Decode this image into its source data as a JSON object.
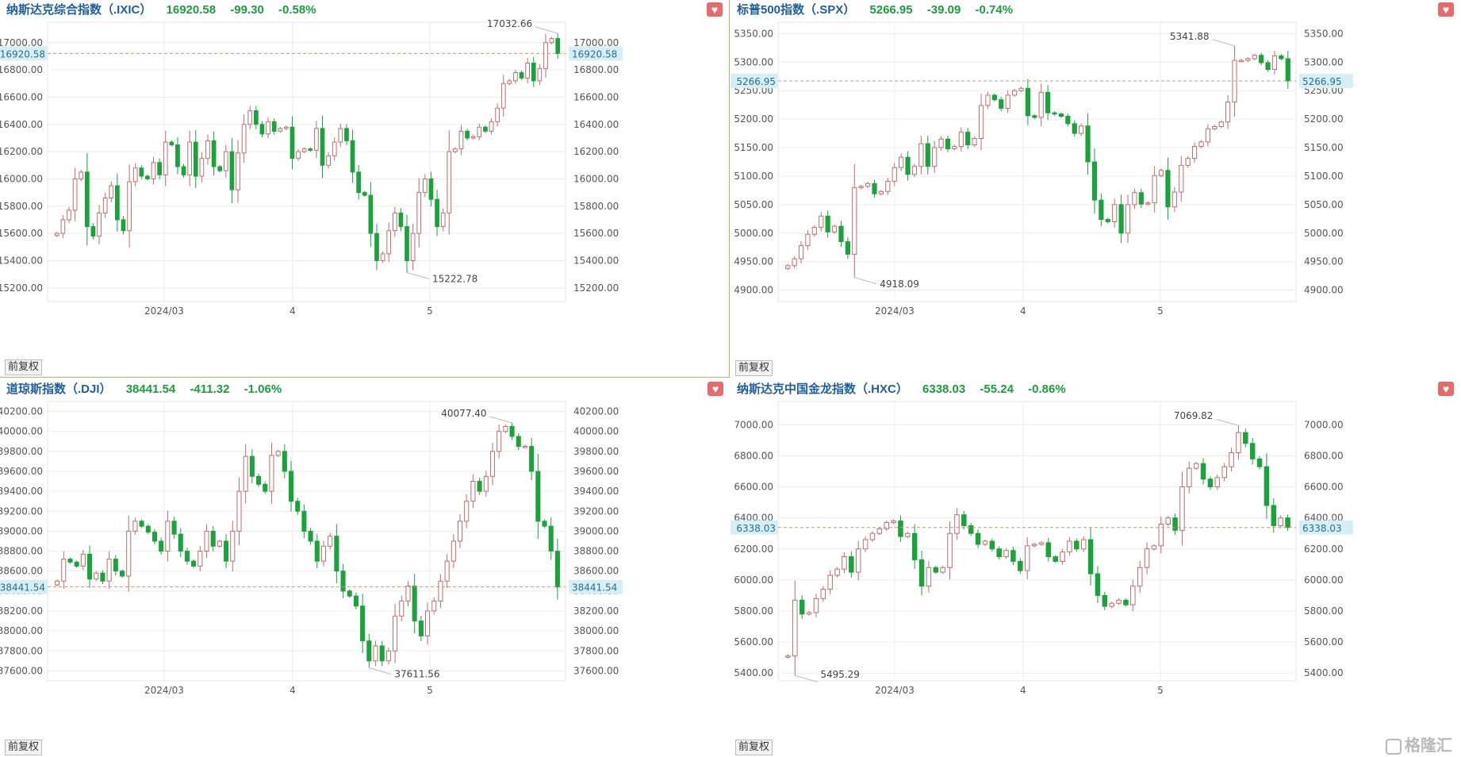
{
  "colors": {
    "up": "#c86a6a",
    "down": "#1aa33c",
    "dash": "#d4956a",
    "grid": "#ececec",
    "axis_text": "#555555",
    "current_bg": "#d6eef6"
  },
  "common": {
    "fq_label": "前复权",
    "x_ticks": [
      "2024/03",
      "4",
      "5"
    ]
  },
  "watermark": "格隆汇",
  "charts": [
    {
      "name": "纳斯达克综合指数（.IXIC）",
      "price": "16920.58",
      "change": "-99.30",
      "pct": "-0.58%",
      "current": "16920.58",
      "high_label": "17032.66",
      "low_label": "15222.78",
      "y_ticks": [
        "15200.00",
        "15400.00",
        "15600.00",
        "15800.00",
        "16000.00",
        "16200.00",
        "16400.00",
        "16600.00",
        "16800.00",
        "17000.00"
      ]
    },
    {
      "name": "标普500指数（.SPX）",
      "price": "5266.95",
      "change": "-39.09",
      "pct": "-0.74%",
      "current": "5266.95",
      "high_label": "5341.88",
      "low_label": "4918.09",
      "y_ticks": [
        "4900.00",
        "4950.00",
        "5000.00",
        "5050.00",
        "5100.00",
        "5150.00",
        "5200.00",
        "5250.00",
        "5300.00",
        "5350.00"
      ]
    },
    {
      "name": "道琼斯指数（.DJI）",
      "price": "38441.54",
      "change": "-411.32",
      "pct": "-1.06%",
      "current": "38441.54",
      "high_label": "40077.40",
      "low_label": "37611.56",
      "y_ticks": [
        "37600.00",
        "37800.00",
        "38000.00",
        "38200.00",
        "38400.00",
        "38600.00",
        "38800.00",
        "39000.00",
        "39200.00",
        "39400.00",
        "39600.00",
        "39800.00",
        "40000.00",
        "40200.00"
      ]
    },
    {
      "name": "纳斯达克中国金龙指数（.HXC）",
      "price": "6338.03",
      "change": "-55.24",
      "pct": "-0.86%",
      "current": "6338.03",
      "high_label": "7069.82",
      "low_label": "5495.29",
      "y_ticks": [
        "5400.00",
        "5600.00",
        "5800.00",
        "6000.00",
        "6200.00",
        "6400.00",
        "6600.00",
        "6800.00",
        "7000.00"
      ]
    }
  ],
  "chart_data": [
    {
      "type": "candlestick",
      "title": "纳斯达克综合指数（.IXIC）",
      "x_ticks": [
        "2024/03",
        "4",
        "5"
      ],
      "ylim": [
        15100,
        17150
      ],
      "close": [
        15600,
        15700,
        15770,
        16000,
        16050,
        15650,
        15580,
        15750,
        15860,
        15950,
        15700,
        15620,
        15980,
        16080,
        16020,
        16000,
        16120,
        16030,
        16270,
        16250,
        16090,
        16030,
        16270,
        16020,
        16150,
        16280,
        16090,
        16060,
        16200,
        15920,
        16190,
        16400,
        16500,
        16400,
        16330,
        16420,
        16350,
        16370,
        16380,
        16150,
        16200,
        16220,
        16210,
        16370,
        16100,
        16170,
        16270,
        16370,
        16280,
        16050,
        15900,
        15880,
        15600,
        15400,
        15450,
        15620,
        15750,
        15650,
        15400,
        15600,
        15900,
        16000,
        15850,
        15650,
        15750,
        16200,
        16220,
        16350,
        16300,
        16310,
        16380,
        16350,
        16420,
        16520,
        16700,
        16720,
        16780,
        16740,
        16850,
        16720,
        16810,
        17000,
        17030,
        16920
      ],
      "high_approx": 17032.66,
      "low_approx": 15222.78
    },
    {
      "type": "candlestick",
      "title": "标普500指数（.SPX）",
      "x_ticks": [
        "2024/03",
        "4",
        "5"
      ],
      "ylim": [
        4880,
        5370
      ],
      "close": [
        4943,
        4955,
        4978,
        4998,
        5010,
        5030,
        5002,
        5012,
        4985,
        4963,
        5080,
        5082,
        5087,
        5069,
        5073,
        5091,
        5115,
        5133,
        5103,
        5117,
        5157,
        5117,
        5150,
        5165,
        5148,
        5152,
        5177,
        5155,
        5166,
        5224,
        5242,
        5234,
        5219,
        5242,
        5250,
        5254,
        5206,
        5203,
        5247,
        5211,
        5209,
        5205,
        5192,
        5175,
        5188,
        5125,
        5058,
        5024,
        5020,
        5050,
        5000,
        5050,
        5071,
        5051,
        5053,
        5101,
        5110,
        5046,
        5072,
        5119,
        5131,
        5152,
        5160,
        5183,
        5187,
        5195,
        5230,
        5303,
        5303,
        5306,
        5312,
        5299,
        5287,
        5311,
        5306,
        5267
      ],
      "high_approx": 5341.88,
      "low_approx": 4918.09
    },
    {
      "type": "candlestick",
      "title": "道琼斯指数（.DJI）",
      "x_ticks": [
        "2024/03",
        "4",
        "5"
      ],
      "ylim": [
        37500,
        40300
      ],
      "close": [
        38500,
        38720,
        38690,
        38650,
        38770,
        38520,
        38580,
        38500,
        38720,
        38600,
        38550,
        39000,
        39100,
        39050,
        38990,
        38900,
        38800,
        39100,
        38970,
        38800,
        38700,
        38650,
        38800,
        39000,
        38850,
        38900,
        38700,
        39000,
        39400,
        39750,
        39550,
        39470,
        39400,
        39760,
        39800,
        39600,
        39300,
        39200,
        39000,
        38900,
        38700,
        38850,
        38950,
        38600,
        38400,
        38350,
        38250,
        37900,
        37700,
        37850,
        37700,
        37800,
        38150,
        38300,
        38450,
        38100,
        37950,
        38200,
        38300,
        38500,
        38700,
        38900,
        39100,
        39300,
        39500,
        39400,
        39550,
        39800,
        40000,
        40050,
        39950,
        39850,
        39850,
        39600,
        39100,
        39050,
        38800,
        38440
      ],
      "high_approx": 40077.4,
      "low_approx": 37611.56
    },
    {
      "type": "candlestick",
      "title": "纳斯达克中国金龙指数（.HXC）",
      "x_ticks": [
        "2024/03",
        "4",
        "5"
      ],
      "ylim": [
        5350,
        7150
      ],
      "close": [
        5510,
        5870,
        5780,
        5790,
        5880,
        5940,
        6030,
        6070,
        6150,
        6050,
        6200,
        6260,
        6300,
        6330,
        6370,
        6380,
        6280,
        6300,
        6130,
        5960,
        6080,
        6050,
        6080,
        6300,
        6420,
        6350,
        6300,
        6230,
        6250,
        6200,
        6150,
        6190,
        6120,
        6060,
        6220,
        6230,
        6240,
        6150,
        6120,
        6180,
        6250,
        6200,
        6260,
        6040,
        5900,
        5830,
        5850,
        5870,
        5840,
        5960,
        6080,
        6200,
        6220,
        6360,
        6400,
        6320,
        6600,
        6720,
        6750,
        6650,
        6600,
        6660,
        6730,
        6820,
        6950,
        6880,
        6780,
        6730,
        6480,
        6350,
        6400,
        6338
      ],
      "high_approx": 7069.82,
      "low_approx": 5495.29
    }
  ]
}
